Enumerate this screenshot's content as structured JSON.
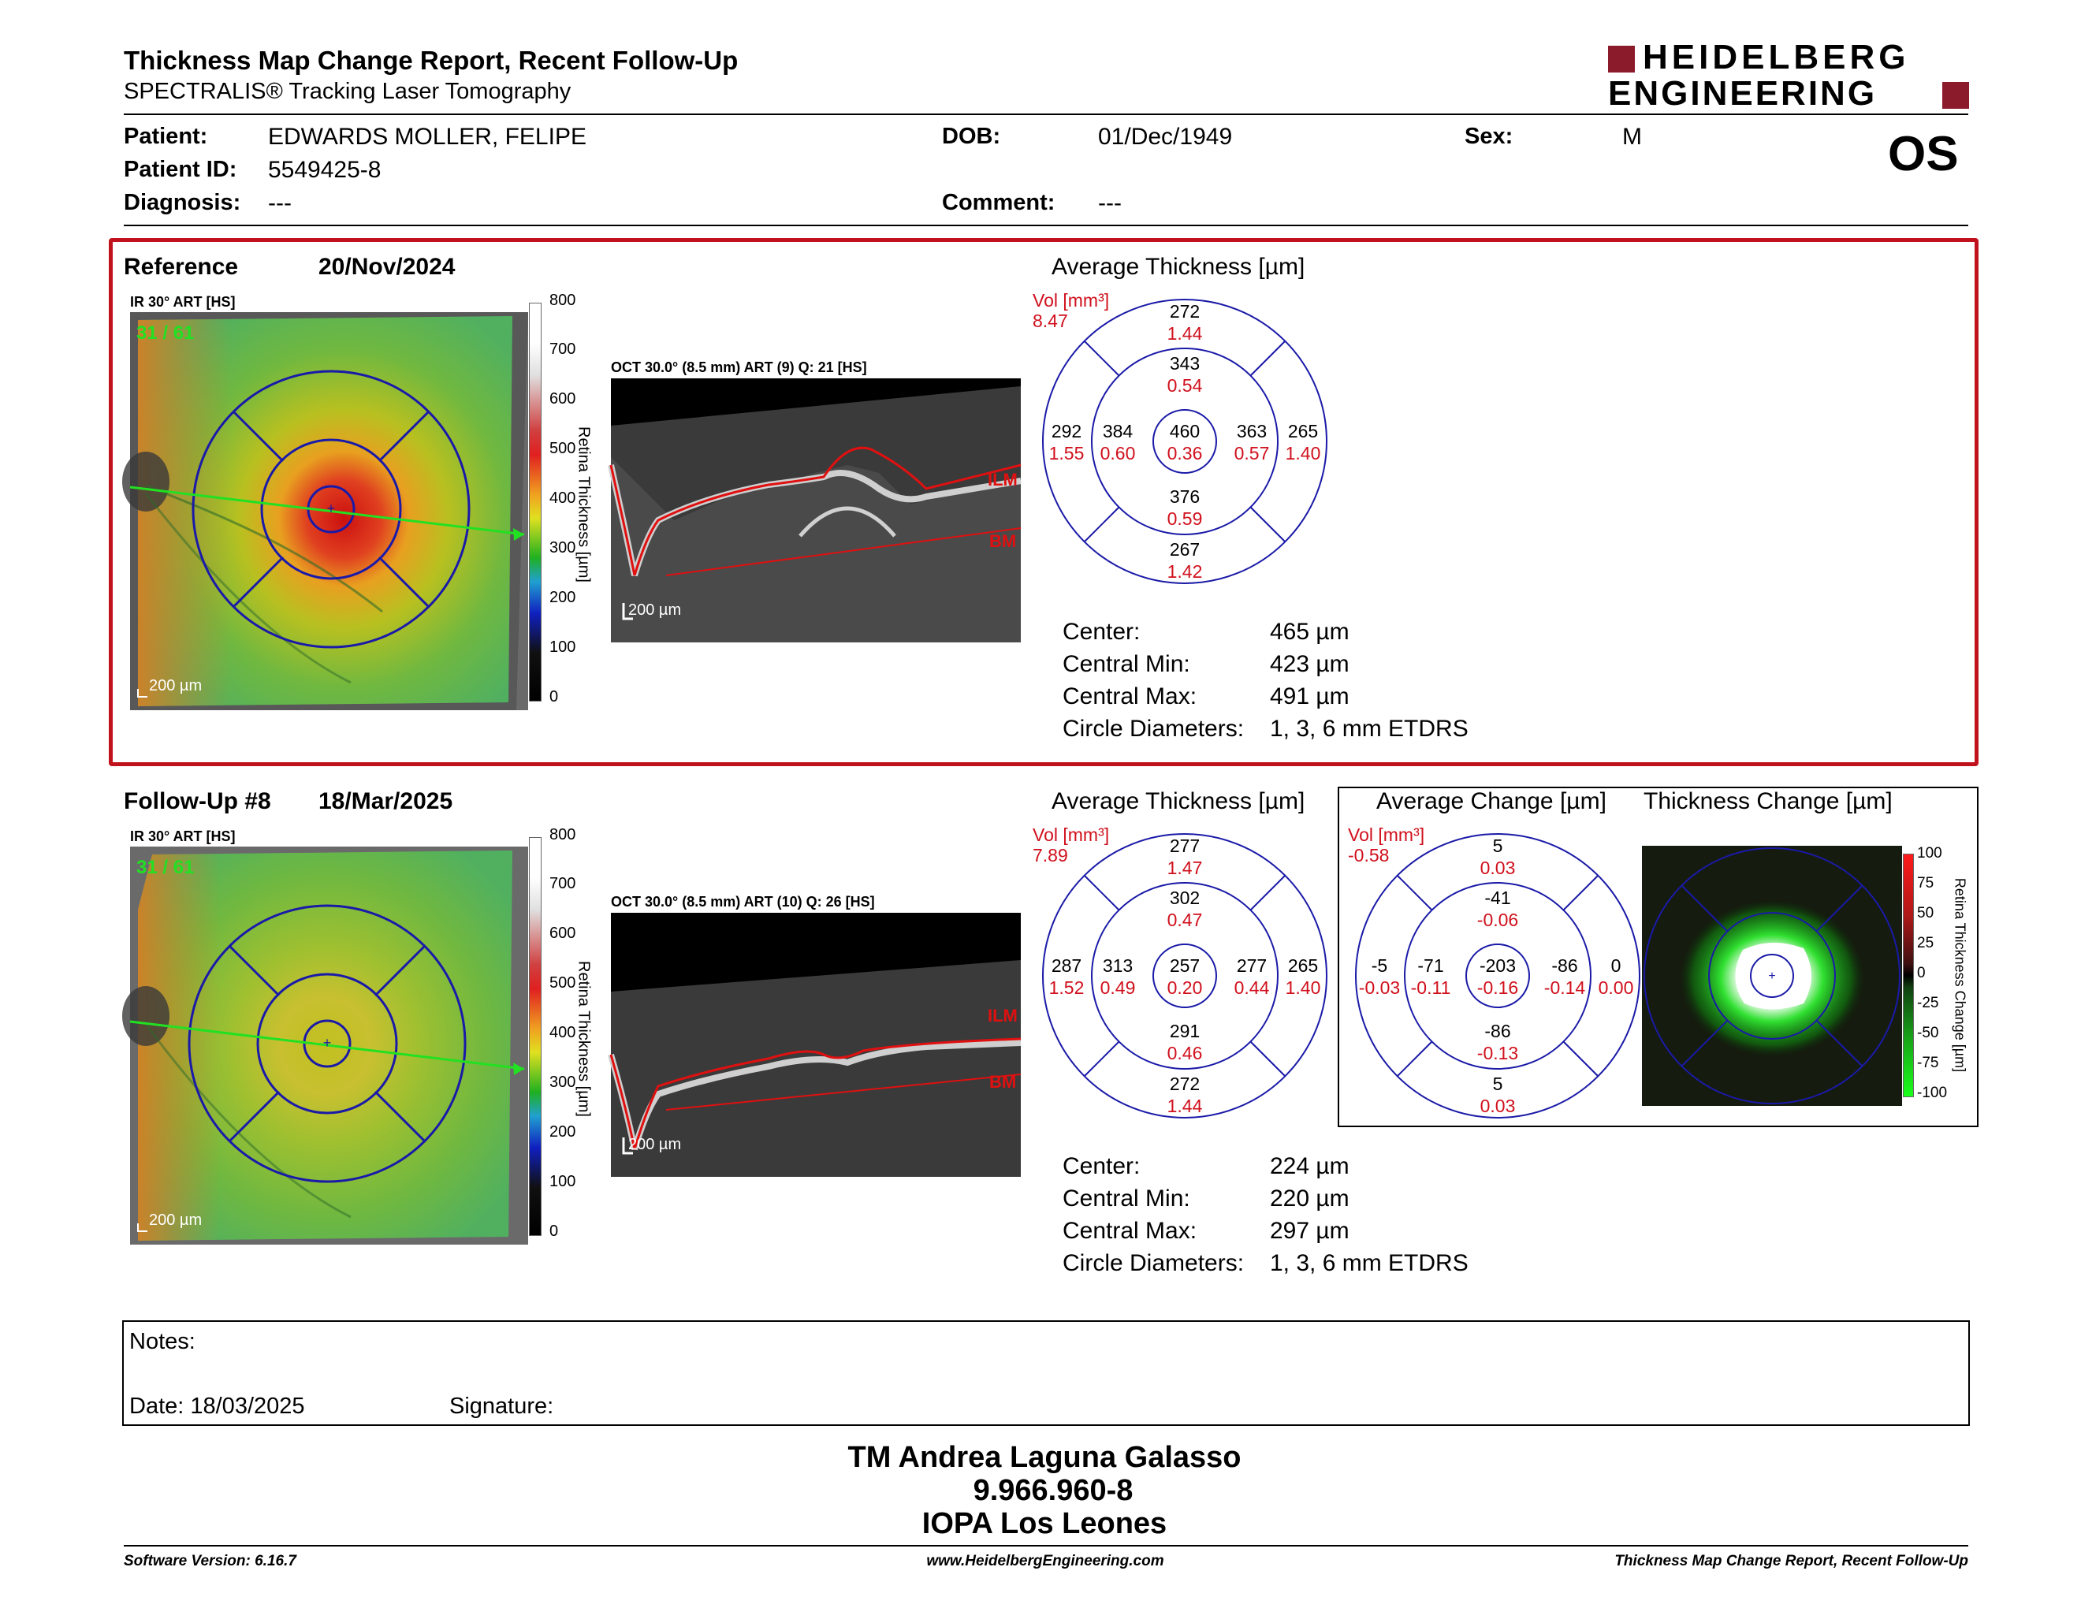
{
  "header": {
    "title": "Thickness Map Change Report, Recent Follow-Up",
    "subtitle": "SPECTRALIS® Tracking Laser Tomography",
    "brand_line1": "HEIDELBERG",
    "brand_line2": "ENGINEERING",
    "brand_color": "#8b1a2b",
    "eye": "OS"
  },
  "patient": {
    "patient_label": "Patient:",
    "patient_value": "EDWARDS MOLLER, FELIPE",
    "id_label": "Patient ID:",
    "id_value": "5549425-8",
    "diagnosis_label": "Diagnosis:",
    "diagnosis_value": "---",
    "dob_label": "DOB:",
    "dob_value": "01/Dec/1949",
    "comment_label": "Comment:",
    "comment_value": "---",
    "sex_label": "Sex:",
    "sex_value": "M"
  },
  "reference": {
    "label": "Reference",
    "date": "20/Nov/2024",
    "ir_label": "IR 30° ART [HS]",
    "frame": "31 / 61",
    "scale": "200 µm",
    "colorbar_ticks": [
      "800",
      "700",
      "600",
      "500",
      "400",
      "300",
      "200",
      "100",
      "0"
    ],
    "colorbar_title": "Retina Thickness [µm]",
    "oct_label": "OCT 30.0° (8.5 mm) ART (9) Q: 21 [HS]",
    "oct_scale": "200 µm",
    "ilm": "ILM",
    "bm": "BM",
    "grid_title": "Average Thickness [µm]",
    "vol_label": "Vol [mm³]",
    "vol_value": "8.47",
    "sectors": {
      "outer_sup": [
        "272",
        "1.44"
      ],
      "inner_sup": [
        "343",
        "0.54"
      ],
      "outer_temp": [
        "292",
        "1.55"
      ],
      "inner_temp": [
        "384",
        "0.60"
      ],
      "center": [
        "460",
        "0.36"
      ],
      "inner_nas": [
        "363",
        "0.57"
      ],
      "outer_nas": [
        "265",
        "1.40"
      ],
      "inner_inf": [
        "376",
        "0.59"
      ],
      "outer_inf": [
        "267",
        "1.42"
      ]
    },
    "stats": [
      {
        "label": "Center:",
        "value": "465 µm"
      },
      {
        "label": "Central Min:",
        "value": "423 µm"
      },
      {
        "label": "Central Max:",
        "value": "491 µm"
      },
      {
        "label": "Circle Diameters:",
        "value": "1, 3, 6 mm ETDRS"
      }
    ]
  },
  "followup": {
    "label": "Follow-Up #8",
    "date": "18/Mar/2025",
    "ir_label": "IR 30° ART [HS]",
    "frame": "31 / 61",
    "scale": "200 µm",
    "colorbar_ticks": [
      "800",
      "700",
      "600",
      "500",
      "400",
      "300",
      "200",
      "100",
      "0"
    ],
    "colorbar_title": "Retina Thickness [µm]",
    "oct_label": "OCT 30.0° (8.5 mm) ART (10) Q: 26 [HS]",
    "oct_scale": "200 µm",
    "ilm": "ILM",
    "bm": "BM",
    "grid_title": "Average Thickness [µm]",
    "vol_label": "Vol [mm³]",
    "vol_value": "7.89",
    "sectors": {
      "outer_sup": [
        "277",
        "1.47"
      ],
      "inner_sup": [
        "302",
        "0.47"
      ],
      "outer_temp": [
        "287",
        "1.52"
      ],
      "inner_temp": [
        "313",
        "0.49"
      ],
      "center": [
        "257",
        "0.20"
      ],
      "inner_nas": [
        "277",
        "0.44"
      ],
      "outer_nas": [
        "265",
        "1.40"
      ],
      "inner_inf": [
        "291",
        "0.46"
      ],
      "outer_inf": [
        "272",
        "1.44"
      ]
    },
    "stats": [
      {
        "label": "Center:",
        "value": "224 µm"
      },
      {
        "label": "Central Min:",
        "value": "220 µm"
      },
      {
        "label": "Central Max:",
        "value": "297 µm"
      },
      {
        "label": "Circle Diameters:",
        "value": "1, 3, 6 mm ETDRS"
      }
    ],
    "change": {
      "title": "Average Change [µm]",
      "vol_label": "Vol [mm³]",
      "vol_value": "-0.58",
      "sectors": {
        "outer_sup": [
          "5",
          "0.03"
        ],
        "inner_sup": [
          "-41",
          "-0.06"
        ],
        "outer_temp": [
          "-5",
          "-0.03"
        ],
        "inner_temp": [
          "-71",
          "-0.11"
        ],
        "center": [
          "-203",
          "-0.16"
        ],
        "inner_nas": [
          "-86",
          "-0.14"
        ],
        "outer_nas": [
          "0",
          "0.00"
        ],
        "inner_inf": [
          "-86",
          "-0.13"
        ],
        "outer_inf": [
          "5",
          "0.03"
        ]
      }
    },
    "change_map": {
      "title": "Thickness Change [µm]",
      "colorbar_ticks": [
        "100",
        "75",
        "50",
        "25",
        "0",
        "-25",
        "-50",
        "-75",
        "-100"
      ],
      "colorbar_title": "Retina Thickness Change [µm]"
    }
  },
  "notes": {
    "label": "Notes:",
    "date_label": "Date: 18/03/2025",
    "signature_label": "Signature:"
  },
  "signature_block": {
    "name": "TM Andrea Laguna Galasso",
    "id": "9.966.960-8",
    "institution": "IOPA Los Leones"
  },
  "footer": {
    "software": "Software Version: 6.16.7",
    "website": "www.HeidelbergEngineering.com",
    "report": "Thickness Map Change Report, Recent Follow-Up"
  },
  "colors": {
    "frame_red": "#c0121c",
    "value_red": "#d0101c",
    "grid_blue": "#1a1aa8",
    "scan_green": "#22e022"
  }
}
